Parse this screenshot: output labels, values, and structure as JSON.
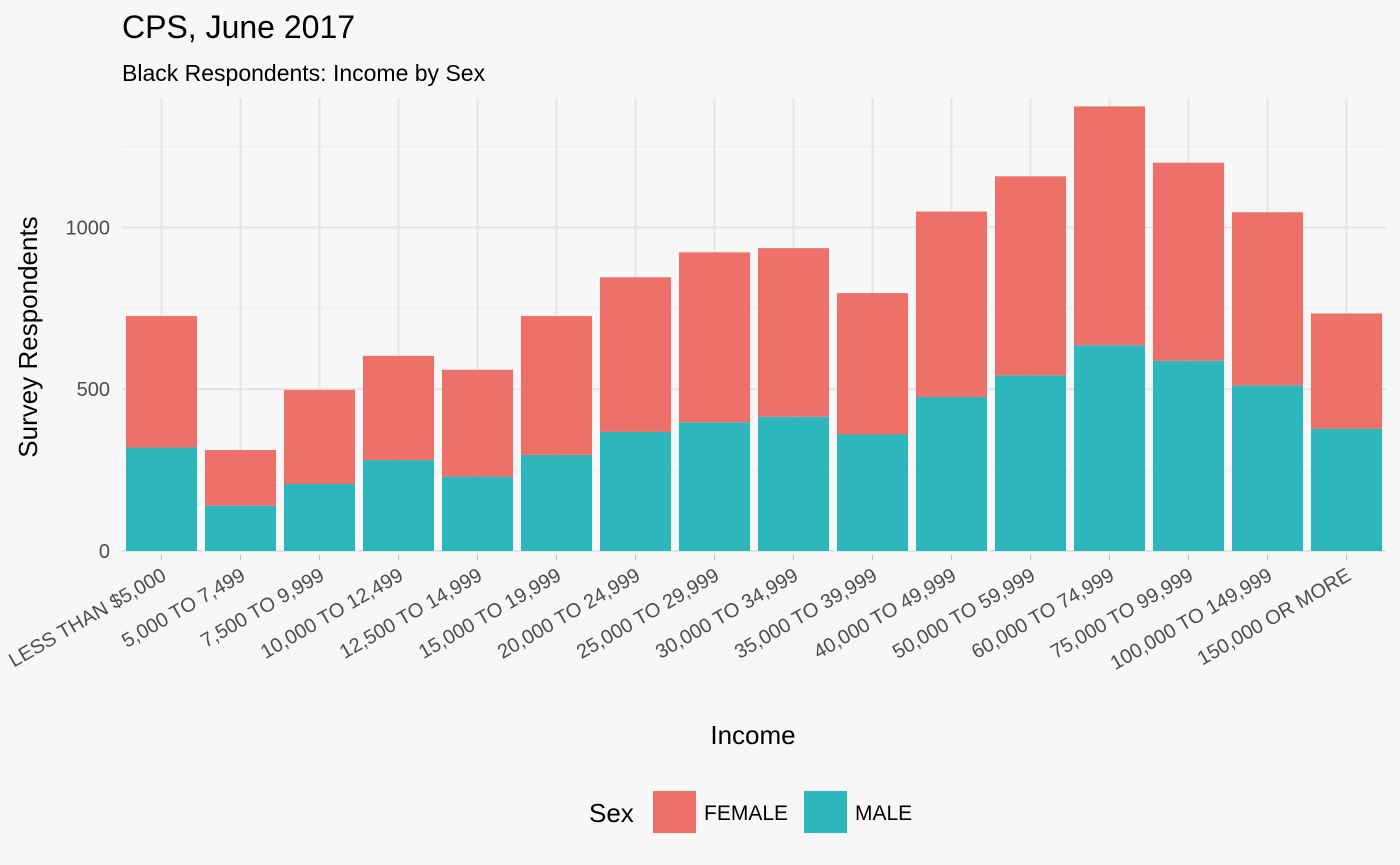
{
  "chart_data": {
    "type": "bar",
    "stacked": true,
    "title": "CPS, June 2017",
    "subtitle": "Black Respondents: Income by Sex",
    "xlabel": "Income",
    "ylabel": "Survey Respondents",
    "ylim": [
      0,
      1400
    ],
    "yticks": [
      0,
      500,
      1000
    ],
    "grid": true,
    "legend": {
      "title": "Sex",
      "position": "bottom",
      "entries": [
        "FEMALE",
        "MALE"
      ]
    },
    "categories": [
      "LESS THAN $5,000",
      "5,000 TO 7,499",
      "7,500 TO 9,999",
      "10,000 TO 12,499",
      "12,500 TO 14,999",
      "15,000 TO 19,999",
      "20,000 TO 24,999",
      "25,000 TO 29,999",
      "30,000 TO 34,999",
      "35,000 TO 39,999",
      "40,000 TO 49,999",
      "50,000 TO 59,999",
      "60,000 TO 74,999",
      "75,000 TO 99,999",
      "100,000 TO 149,999",
      "150,000 OR MORE"
    ],
    "series": [
      {
        "name": "MALE",
        "color": "#2db7bd",
        "values": [
          320,
          140,
          207,
          281,
          230,
          297,
          368,
          398,
          415,
          360,
          476,
          543,
          636,
          588,
          512,
          378
        ]
      },
      {
        "name": "FEMALE",
        "color": "#ed7069",
        "values": [
          406,
          172,
          291,
          322,
          330,
          429,
          478,
          525,
          521,
          437,
          573,
          615,
          738,
          612,
          535,
          356
        ]
      }
    ]
  }
}
